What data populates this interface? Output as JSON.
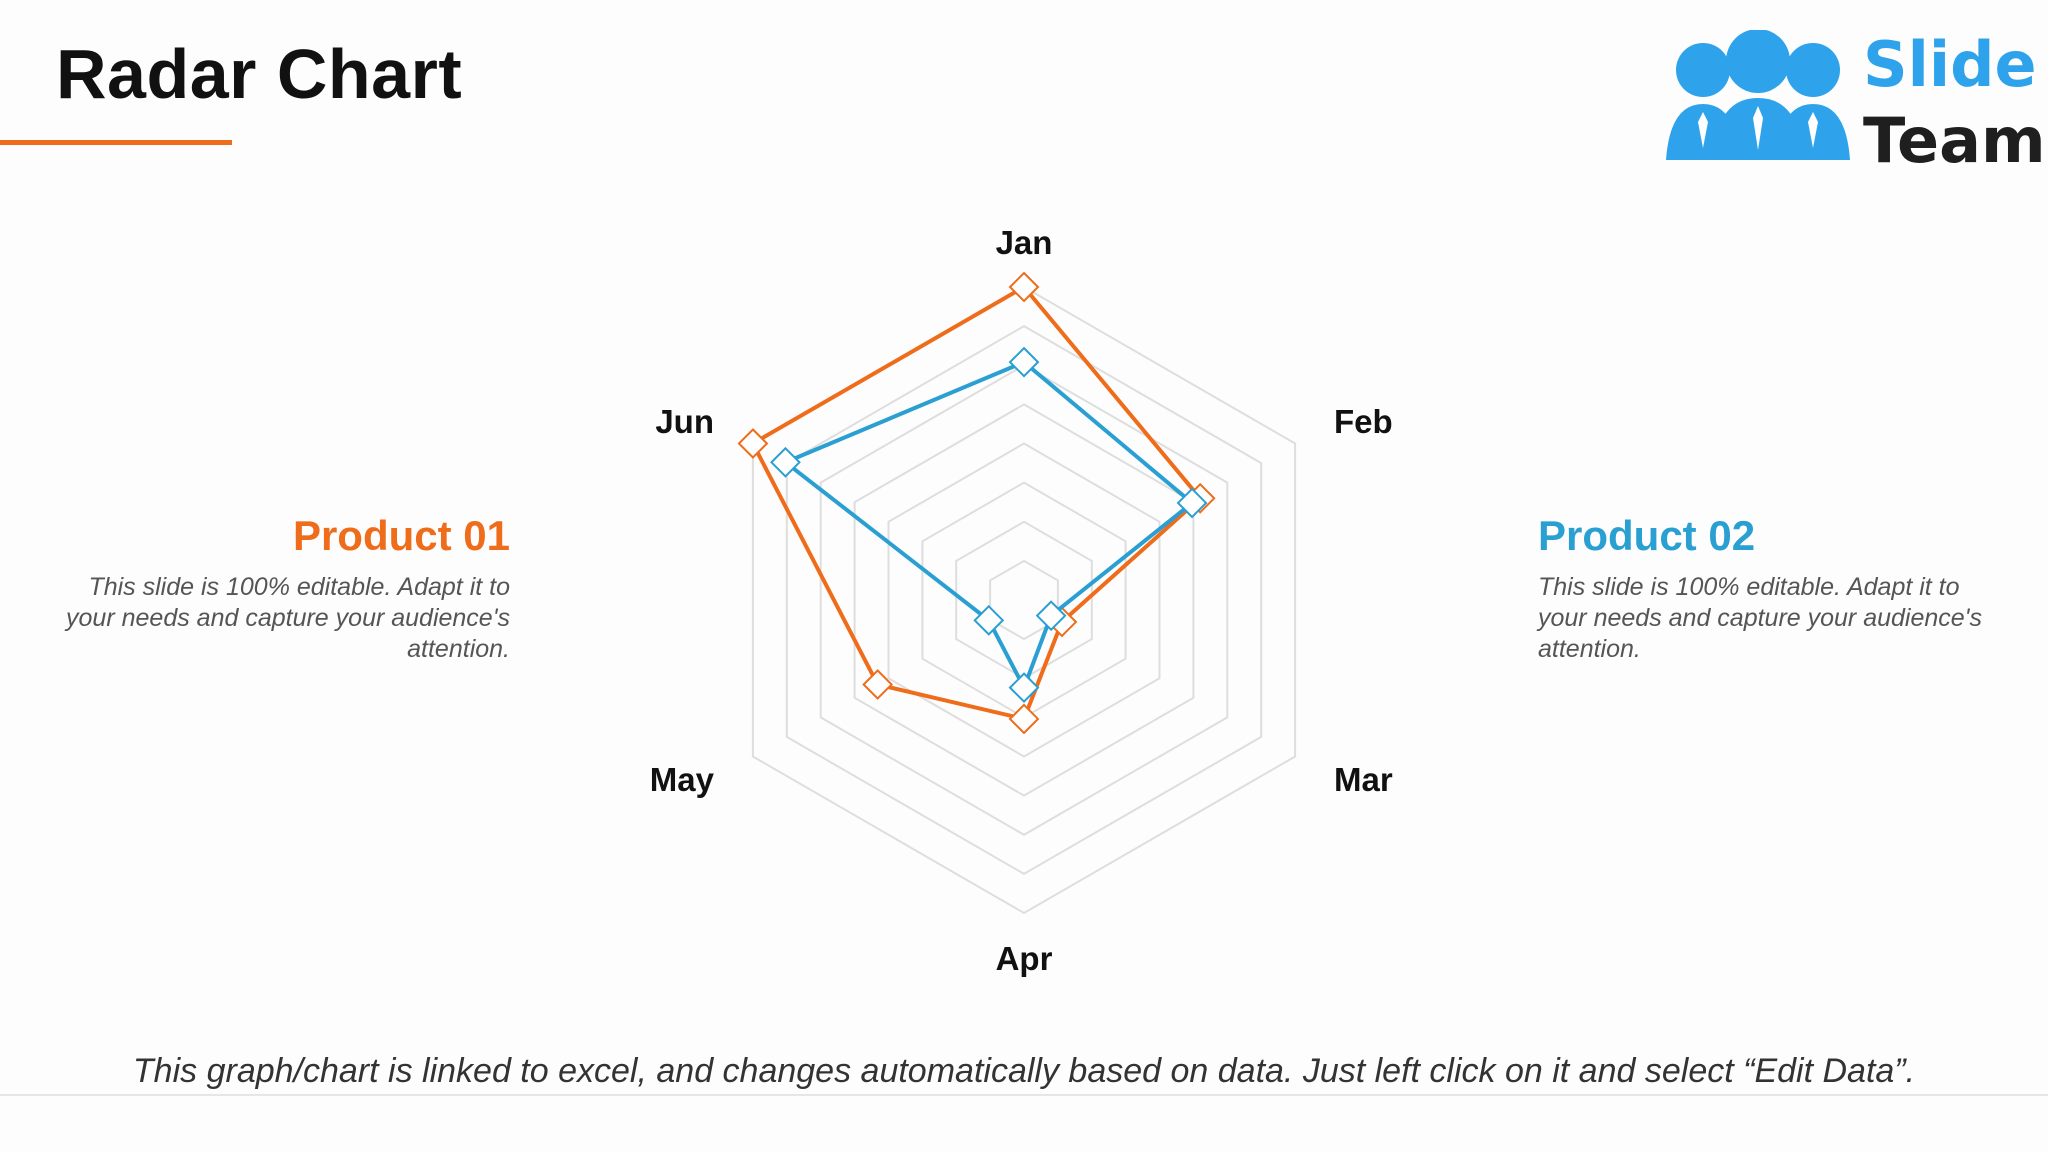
{
  "slide": {
    "title": "Radar Chart",
    "footnote": "This graph/chart is linked to excel, and changes automatically based on data. Just left click on it and select “Edit Data”."
  },
  "logo": {
    "line1": "Slide",
    "line2": "Team"
  },
  "products": [
    {
      "heading": "Product 01",
      "description": "This slide is 100% editable. Adapt it to your needs and capture your audience's attention."
    },
    {
      "heading": "Product 02",
      "description": "This slide is 100% editable. Adapt it to your needs and capture your audience's attention."
    }
  ],
  "colors": {
    "accent": "#ee6c1a",
    "product01": "#ee6c1a",
    "product02": "#2a9fd2",
    "grid": "#dedede",
    "logo_blue": "#2ea3ec"
  },
  "chart_data": {
    "type": "radar",
    "categories": [
      "Jan",
      "Feb",
      "Mar",
      "Apr",
      "May",
      "Jun"
    ],
    "rmax": 10,
    "rings": 8,
    "series": [
      {
        "name": "Product 01",
        "color": "#ee6c1a",
        "values": [
          10,
          6.5,
          1.4,
          3.8,
          5.4,
          10
        ]
      },
      {
        "name": "Product 02",
        "color": "#2a9fd2",
        "values": [
          7.6,
          6.2,
          1.0,
          2.8,
          1.3,
          8.8
        ]
      }
    ]
  }
}
